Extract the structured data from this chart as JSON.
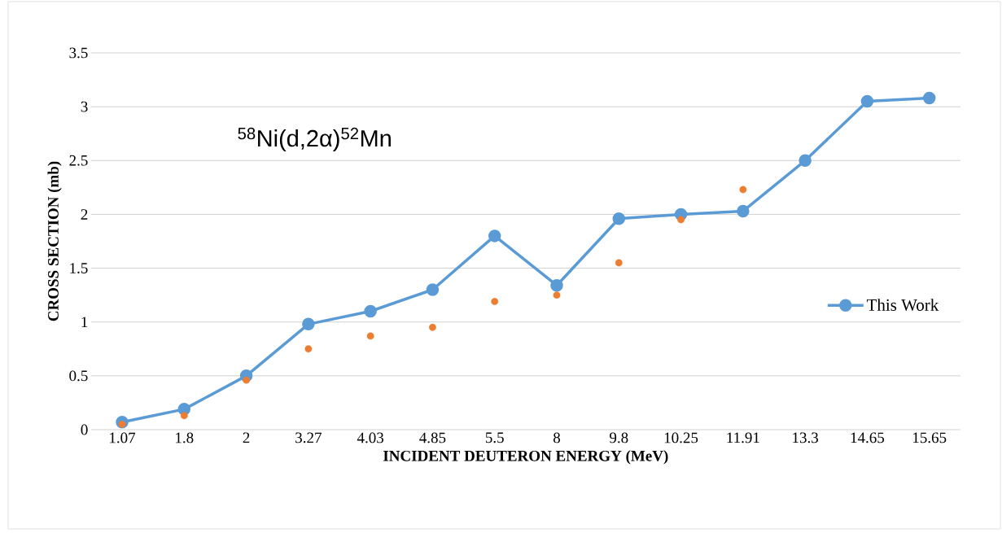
{
  "chart_data": {
    "type": "line",
    "xlabel": "INCIDENT DEUTERON ENERGY (MeV)",
    "ylabel": "CROSS SECTION (mb)",
    "annotations": [
      "$^{58}$Ni(d,2α)$^{52}$Mn"
    ],
    "categories": [
      "1.07",
      "1.8",
      "2",
      "3.27",
      "4.03",
      "4.85",
      "5.5",
      "8",
      "9.8",
      "10.25",
      "11.91",
      "13.3",
      "14.65",
      "15.65"
    ],
    "series": [
      {
        "name": "This Work",
        "type": "line",
        "color": "#5b9bd5",
        "values": [
          0.07,
          0.19,
          0.5,
          0.98,
          1.1,
          1.3,
          1.8,
          1.34,
          1.96,
          2.0,
          2.03,
          2.5,
          3.05,
          3.08
        ]
      },
      {
        "type": "scatter",
        "color": "#ed7d31",
        "values": [
          0.05,
          0.13,
          0.46,
          0.75,
          0.87,
          0.95,
          1.19,
          1.25,
          1.55,
          1.95,
          2.23,
          null,
          null,
          null
        ]
      }
    ],
    "ylim": [
      0,
      3.5
    ],
    "yticks": [
      0,
      0.5,
      1,
      1.5,
      2,
      2.5,
      3,
      3.5
    ],
    "grid": "y",
    "legend": "right",
    "marker": "circle",
    "line_style": "solid"
  }
}
